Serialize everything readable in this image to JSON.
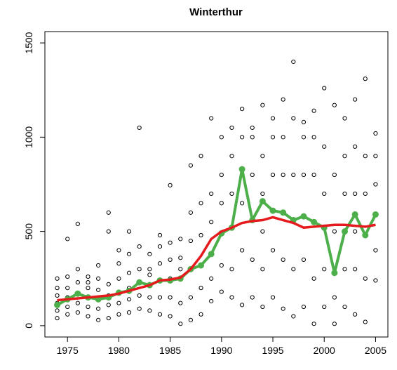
{
  "chart_data": {
    "type": "scatter",
    "title": "Winterthur",
    "xlim": [
      1972.8,
      2006.2
    ],
    "ylim": [
      -60,
      1560
    ],
    "xticks": [
      1975,
      1980,
      1985,
      1990,
      1995,
      2000,
      2005
    ],
    "yticks": [
      0,
      500,
      1000,
      1500
    ],
    "points": {
      "color": "#000000",
      "x": [
        1974,
        1974,
        1974,
        1974,
        1974,
        1974,
        1975,
        1975,
        1975,
        1975,
        1975,
        1975,
        1976,
        1976,
        1976,
        1976,
        1976,
        1976,
        1977,
        1977,
        1977,
        1977,
        1977,
        1977,
        1978,
        1978,
        1978,
        1978,
        1978,
        1978,
        1979,
        1979,
        1979,
        1979,
        1979,
        1979,
        1980,
        1980,
        1980,
        1980,
        1980,
        1980,
        1981,
        1981,
        1981,
        1981,
        1981,
        1981,
        1982,
        1982,
        1982,
        1982,
        1982,
        1982,
        1983,
        1983,
        1983,
        1983,
        1983,
        1983,
        1984,
        1984,
        1984,
        1984,
        1984,
        1984,
        1985,
        1985,
        1985,
        1985,
        1985,
        1985,
        1986,
        1986,
        1986,
        1986,
        1986,
        1986,
        1987,
        1987,
        1987,
        1987,
        1987,
        1987,
        1988,
        1988,
        1988,
        1988,
        1988,
        1988,
        1989,
        1989,
        1989,
        1989,
        1989,
        1989,
        1990,
        1990,
        1990,
        1990,
        1990,
        1990,
        1991,
        1991,
        1991,
        1991,
        1991,
        1991,
        1992,
        1992,
        1992,
        1992,
        1992,
        1992,
        1993,
        1993,
        1993,
        1993,
        1993,
        1993,
        1994,
        1994,
        1994,
        1994,
        1994,
        1994,
        1995,
        1995,
        1995,
        1995,
        1995,
        1995,
        1996,
        1996,
        1996,
        1996,
        1996,
        1996,
        1997,
        1997,
        1997,
        1997,
        1997,
        1997,
        1998,
        1998,
        1998,
        1998,
        1998,
        1998,
        1999,
        1999,
        1999,
        1999,
        1999,
        1999,
        2000,
        2000,
        2000,
        2000,
        2000,
        2000,
        2001,
        2001,
        2001,
        2001,
        2001,
        2001,
        2002,
        2002,
        2002,
        2002,
        2002,
        2002,
        2003,
        2003,
        2003,
        2003,
        2003,
        2003,
        2004,
        2004,
        2004,
        2004,
        2004,
        2004,
        2005,
        2005,
        2005,
        2005,
        2005,
        2005
      ],
      "y": [
        40,
        80,
        120,
        160,
        200,
        250,
        60,
        100,
        150,
        200,
        260,
        460,
        70,
        120,
        170,
        230,
        300,
        540,
        50,
        100,
        150,
        200,
        260,
        230,
        30,
        90,
        140,
        190,
        250,
        320,
        40,
        110,
        160,
        220,
        500,
        600,
        60,
        120,
        180,
        250,
        330,
        400,
        70,
        140,
        200,
        280,
        380,
        500,
        90,
        160,
        230,
        300,
        420,
        1050,
        80,
        150,
        220,
        300,
        380,
        270,
        60,
        150,
        240,
        330,
        420,
        480,
        50,
        150,
        250,
        350,
        440,
        745,
        10,
        120,
        250,
        360,
        460,
        300,
        30,
        150,
        300,
        450,
        600,
        850,
        60,
        200,
        320,
        480,
        650,
        900,
        130,
        250,
        380,
        550,
        700,
        1100,
        180,
        320,
        490,
        650,
        800,
        1000,
        150,
        300,
        520,
        700,
        900,
        1050,
        110,
        400,
        650,
        830,
        1000,
        1150,
        150,
        350,
        560,
        800,
        1000,
        1050,
        100,
        300,
        500,
        700,
        900,
        1170,
        150,
        400,
        610,
        800,
        1000,
        1100,
        90,
        350,
        600,
        800,
        1000,
        1200,
        50,
        300,
        560,
        800,
        1100,
        1400,
        100,
        350,
        580,
        800,
        1000,
        1080,
        10,
        250,
        550,
        800,
        1000,
        1140,
        100,
        300,
        520,
        700,
        950,
        1260,
        10,
        150,
        280,
        500,
        800,
        1170,
        100,
        300,
        500,
        700,
        900,
        1100,
        60,
        300,
        500,
        700,
        950,
        1200,
        20,
        250,
        480,
        700,
        900,
        1310,
        240,
        400,
        590,
        750,
        900,
        1020
      ]
    },
    "x": [
      1974,
      1975,
      1976,
      1977,
      1978,
      1979,
      1980,
      1981,
      1982,
      1983,
      1984,
      1985,
      1986,
      1987,
      1988,
      1989,
      1990,
      1991,
      1992,
      1993,
      1994,
      1995,
      1996,
      1997,
      1998,
      1999,
      2000,
      2001,
      2002,
      2003,
      2004,
      2005
    ],
    "series": [
      {
        "color": "#4daf4a",
        "values": [
          110,
          140,
          170,
          150,
          140,
          150,
          175,
          185,
          230,
          215,
          240,
          240,
          250,
          300,
          320,
          380,
          490,
          520,
          830,
          560,
          660,
          610,
          600,
          560,
          580,
          550,
          520,
          280,
          500,
          590,
          480,
          590
        ]
      },
      {
        "color": "#e41a1c",
        "values": [
          135,
          140,
          145,
          150,
          155,
          160,
          170,
          185,
          200,
          215,
          240,
          245,
          255,
          300,
          370,
          460,
          500,
          520,
          545,
          555,
          560,
          575,
          560,
          545,
          520,
          525,
          530,
          535,
          535,
          530,
          525,
          535
        ]
      }
    ]
  }
}
